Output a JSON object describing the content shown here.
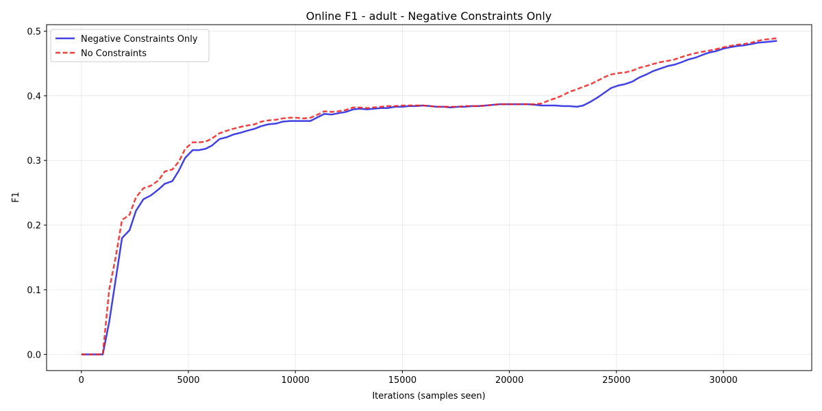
{
  "chart_data": {
    "type": "line",
    "title": "Online F1 - adult - Negative Constraints Only",
    "xlabel": "Iterations (samples seen)",
    "ylabel": "F1",
    "xlim": [
      -1625,
      34125
    ],
    "ylim": [
      -0.025,
      0.51
    ],
    "xticks": [
      0,
      5000,
      10000,
      15000,
      20000,
      25000,
      30000
    ],
    "xtick_labels": [
      "0",
      "5000",
      "10000",
      "15000",
      "20000",
      "25000",
      "30000"
    ],
    "yticks": [
      0.0,
      0.1,
      0.2,
      0.3,
      0.4,
      0.5
    ],
    "ytick_labels": [
      "0.0",
      "0.1",
      "0.2",
      "0.3",
      "0.4",
      "0.5"
    ],
    "grid": true,
    "legend_position": "top-left",
    "series": [
      {
        "name": "Negative Constraints Only",
        "color": "#1f1fdf",
        "style": "solid",
        "x": [
          0,
          500,
          1000,
          1300,
          1600,
          1900,
          2250,
          2550,
          2900,
          3250,
          3600,
          3900,
          4250,
          4550,
          4850,
          5200,
          5500,
          5800,
          6100,
          6450,
          6800,
          7100,
          7450,
          7750,
          8100,
          8400,
          8750,
          9100,
          9400,
          9750,
          10050,
          10400,
          10700,
          11050,
          11350,
          11700,
          12000,
          12350,
          12700,
          13000,
          13350,
          13650,
          14000,
          14300,
          14650,
          15000,
          15300,
          15650,
          15950,
          16300,
          16600,
          16950,
          17250,
          17600,
          17900,
          18250,
          18550,
          18900,
          19250,
          19550,
          19900,
          20200,
          20550,
          20850,
          21200,
          21500,
          21850,
          22150,
          22500,
          22800,
          23150,
          23450,
          23800,
          24100,
          24450,
          24750,
          25100,
          25400,
          25750,
          26050,
          26400,
          26700,
          27050,
          27400,
          27700,
          28050,
          28350,
          28700,
          29000,
          29350,
          29650,
          30000,
          30300,
          30650,
          30950,
          31300,
          31600,
          31950,
          32250,
          32500
        ],
        "y": [
          0.0,
          0.0,
          0.0,
          0.05,
          0.115,
          0.18,
          0.192,
          0.222,
          0.24,
          0.246,
          0.255,
          0.264,
          0.268,
          0.284,
          0.304,
          0.316,
          0.316,
          0.318,
          0.323,
          0.333,
          0.336,
          0.34,
          0.343,
          0.346,
          0.349,
          0.353,
          0.356,
          0.357,
          0.36,
          0.361,
          0.361,
          0.361,
          0.361,
          0.367,
          0.372,
          0.371,
          0.373,
          0.375,
          0.379,
          0.38,
          0.379,
          0.38,
          0.381,
          0.381,
          0.383,
          0.383,
          0.384,
          0.384,
          0.385,
          0.384,
          0.383,
          0.383,
          0.382,
          0.383,
          0.383,
          0.384,
          0.384,
          0.385,
          0.386,
          0.387,
          0.387,
          0.387,
          0.387,
          0.387,
          0.386,
          0.385,
          0.385,
          0.385,
          0.384,
          0.384,
          0.383,
          0.385,
          0.391,
          0.397,
          0.405,
          0.412,
          0.416,
          0.418,
          0.422,
          0.428,
          0.433,
          0.438,
          0.442,
          0.446,
          0.448,
          0.452,
          0.456,
          0.459,
          0.463,
          0.467,
          0.469,
          0.473,
          0.475,
          0.477,
          0.478,
          0.48,
          0.482,
          0.483,
          0.484,
          0.485
        ]
      },
      {
        "name": "No Constraints",
        "color": "#ef1f1f",
        "style": "dashed",
        "x": [
          0,
          500,
          1000,
          1300,
          1600,
          1900,
          2250,
          2550,
          2900,
          3250,
          3600,
          3900,
          4250,
          4550,
          4850,
          5200,
          5500,
          5800,
          6100,
          6450,
          6800,
          7100,
          7450,
          7750,
          8100,
          8400,
          8750,
          9100,
          9400,
          9750,
          10050,
          10400,
          10700,
          11050,
          11350,
          11700,
          12000,
          12350,
          12700,
          13000,
          13350,
          13650,
          14000,
          14300,
          14650,
          15000,
          15300,
          15650,
          15950,
          16300,
          16600,
          16950,
          17250,
          17600,
          17900,
          18250,
          18550,
          18900,
          19250,
          19550,
          19900,
          20200,
          20550,
          20850,
          21200,
          21500,
          21850,
          22150,
          22500,
          22800,
          23150,
          23450,
          23800,
          24100,
          24450,
          24750,
          25100,
          25400,
          25750,
          26050,
          26400,
          26700,
          27050,
          27400,
          27700,
          28050,
          28350,
          28700,
          29000,
          29350,
          29650,
          30000,
          30300,
          30650,
          30950,
          31300,
          31600,
          31950,
          32250,
          32500
        ],
        "y": [
          0.0,
          0.0,
          0.0,
          0.1,
          0.15,
          0.208,
          0.216,
          0.243,
          0.257,
          0.261,
          0.269,
          0.283,
          0.286,
          0.298,
          0.318,
          0.328,
          0.328,
          0.329,
          0.334,
          0.342,
          0.346,
          0.349,
          0.352,
          0.354,
          0.356,
          0.36,
          0.362,
          0.363,
          0.365,
          0.366,
          0.366,
          0.365,
          0.366,
          0.371,
          0.376,
          0.375,
          0.376,
          0.378,
          0.382,
          0.382,
          0.381,
          0.382,
          0.383,
          0.384,
          0.384,
          0.385,
          0.385,
          0.385,
          0.385,
          0.384,
          0.383,
          0.383,
          0.383,
          0.383,
          0.384,
          0.384,
          0.384,
          0.385,
          0.386,
          0.387,
          0.387,
          0.387,
          0.387,
          0.387,
          0.387,
          0.388,
          0.393,
          0.396,
          0.401,
          0.406,
          0.41,
          0.414,
          0.418,
          0.423,
          0.429,
          0.433,
          0.435,
          0.436,
          0.439,
          0.443,
          0.446,
          0.449,
          0.452,
          0.454,
          0.456,
          0.46,
          0.463,
          0.466,
          0.468,
          0.47,
          0.472,
          0.475,
          0.477,
          0.479,
          0.48,
          0.482,
          0.485,
          0.487,
          0.488,
          0.489
        ]
      }
    ]
  }
}
